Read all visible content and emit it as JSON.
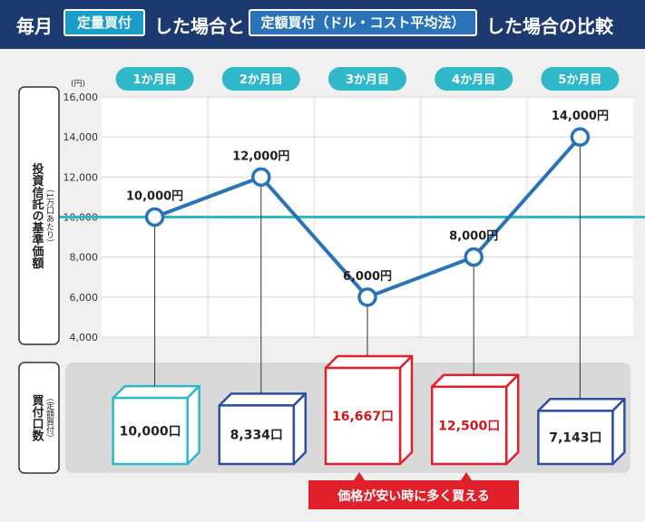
{
  "header": {
    "prefix": "毎月",
    "fixed_quantity": "定量買付",
    "middle": "した場合と",
    "fixed_amount": "定額買付（ドル・コスト平均法）",
    "suffix": "した場合の比較"
  },
  "y_axis": {
    "unit": "(円)",
    "label": "投資信託の基準価額",
    "sublabel": "（1万口あたり）"
  },
  "units_panel": {
    "label": "買付口数",
    "sublabel": "（定額買付）"
  },
  "note": "価格が安い時に多く買える",
  "chart_data": {
    "type": "line",
    "categories": [
      "1か月目",
      "2か月目",
      "3か月目",
      "4か月目",
      "5か月目"
    ],
    "values": [
      10000,
      12000,
      6000,
      8000,
      14000
    ],
    "value_labels": [
      "10,000円",
      "12,000円",
      "6,000円",
      "8,000円",
      "14,000円"
    ],
    "ylim": [
      4000,
      16000
    ],
    "yticks": [
      4000,
      6000,
      8000,
      10000,
      12000,
      14000,
      16000
    ],
    "ytick_labels": [
      "4,000",
      "6,000",
      "8,000",
      "10,000",
      "12,000",
      "14,000",
      "16,000"
    ],
    "reference_value": 10000,
    "grid": true,
    "units_purchased": [
      10000,
      8334,
      16667,
      12500,
      7143
    ],
    "units_labels": [
      "10,000口",
      "8,334口",
      "16,667口",
      "12,500口",
      "7,143口"
    ],
    "units_colors": [
      "#2fb8c8",
      "#2c4f9e",
      "#e0202a",
      "#e0202a",
      "#2c4f9e"
    ],
    "colors": {
      "line": "#2a73b8",
      "reference": "#2fb8c8",
      "category_pill": "#2fb8c8",
      "grid": "#d6d6d6",
      "note_background": "#e0202a"
    }
  }
}
